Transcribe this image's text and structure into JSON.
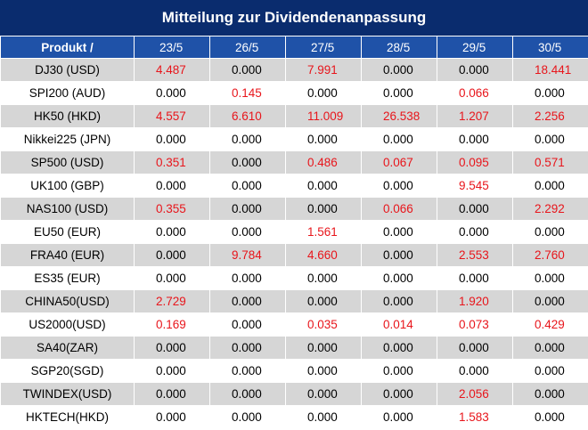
{
  "title": "Mitteilung zur Dividendenanpassung",
  "header": {
    "product_label": "Produkt /",
    "dates": [
      "23/5",
      "26/5",
      "27/5",
      "28/5",
      "29/5",
      "30/5"
    ]
  },
  "colors": {
    "title_bg": "#0a2c6e",
    "header_bg": "#1f52a8",
    "row_shade": "#d6d6d6",
    "nonzero_text": "#e8151b"
  },
  "rows": [
    {
      "product": "DJ30 (USD)",
      "values": [
        "4.487",
        "0.000",
        "7.991",
        "0.000",
        "0.000",
        "18.441"
      ]
    },
    {
      "product": "SPI200 (AUD)",
      "values": [
        "0.000",
        "0.145",
        "0.000",
        "0.000",
        "0.066",
        "0.000"
      ]
    },
    {
      "product": "HK50 (HKD)",
      "values": [
        "4.557",
        "6.610",
        "11.009",
        "26.538",
        "1.207",
        "2.256"
      ]
    },
    {
      "product": "Nikkei225 (JPN)",
      "values": [
        "0.000",
        "0.000",
        "0.000",
        "0.000",
        "0.000",
        "0.000"
      ]
    },
    {
      "product": "SP500 (USD)",
      "values": [
        "0.351",
        "0.000",
        "0.486",
        "0.067",
        "0.095",
        "0.571"
      ]
    },
    {
      "product": "UK100 (GBP)",
      "values": [
        "0.000",
        "0.000",
        "0.000",
        "0.000",
        "9.545",
        "0.000"
      ]
    },
    {
      "product": "NAS100 (USD)",
      "values": [
        "0.355",
        "0.000",
        "0.000",
        "0.066",
        "0.000",
        "2.292"
      ]
    },
    {
      "product": "EU50 (EUR)",
      "values": [
        "0.000",
        "0.000",
        "1.561",
        "0.000",
        "0.000",
        "0.000"
      ]
    },
    {
      "product": "FRA40 (EUR)",
      "values": [
        "0.000",
        "9.784",
        "4.660",
        "0.000",
        "2.553",
        "2.760"
      ]
    },
    {
      "product": "ES35 (EUR)",
      "values": [
        "0.000",
        "0.000",
        "0.000",
        "0.000",
        "0.000",
        "0.000"
      ]
    },
    {
      "product": "CHINA50(USD)",
      "values": [
        "2.729",
        "0.000",
        "0.000",
        "0.000",
        "1.920",
        "0.000"
      ]
    },
    {
      "product": "US2000(USD)",
      "values": [
        "0.169",
        "0.000",
        "0.035",
        "0.014",
        "0.073",
        "0.429"
      ]
    },
    {
      "product": "SA40(ZAR)",
      "values": [
        "0.000",
        "0.000",
        "0.000",
        "0.000",
        "0.000",
        "0.000"
      ]
    },
    {
      "product": "SGP20(SGD)",
      "values": [
        "0.000",
        "0.000",
        "0.000",
        "0.000",
        "0.000",
        "0.000"
      ]
    },
    {
      "product": "TWINDEX(USD)",
      "values": [
        "0.000",
        "0.000",
        "0.000",
        "0.000",
        "2.056",
        "0.000"
      ]
    },
    {
      "product": "HKTECH(HKD)",
      "values": [
        "0.000",
        "0.000",
        "0.000",
        "0.000",
        "1.583",
        "0.000"
      ]
    }
  ]
}
